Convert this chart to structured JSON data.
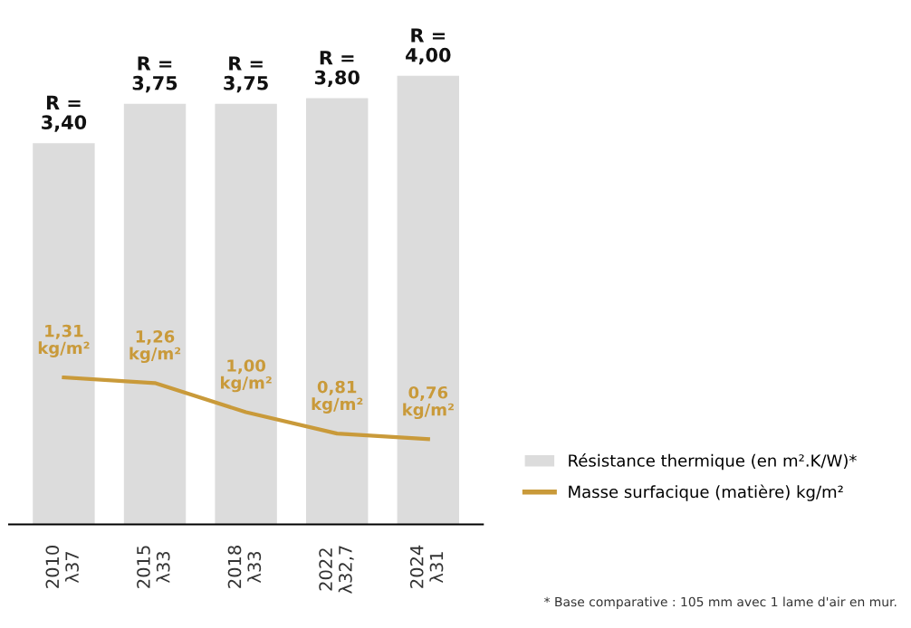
{
  "chart_data": {
    "type": "bar",
    "categories": [
      "2010\nλ37",
      "2015\nλ33",
      "2018\nλ33",
      "2022\nλ32,7",
      "2024\nλ31"
    ],
    "tick_labels": "x",
    "legend": "right",
    "grid": false,
    "series": [
      {
        "name": "Résistance thermique (en m².K/W)*",
        "color": "#dcdcdc",
        "values": [
          3.4,
          3.75,
          3.75,
          3.8,
          4.0
        ],
        "value_labels": [
          "R =\n3,40",
          "R =\n3,75",
          "R =\n3,75",
          "R =\n3,80",
          "R =\n4,00"
        ]
      },
      {
        "name": "Masse surfacique (matière) kg/m²",
        "type": "line",
        "color": "#c99a3a",
        "values": [
          1.31,
          1.26,
          1.0,
          0.81,
          0.76
        ],
        "value_labels": [
          "1,31\nkg/m²",
          "1,26\nkg/m²",
          "1,00\nkg/m²",
          "0,81\nkg/m²",
          "0,76\nkg/m²"
        ]
      }
    ],
    "annotations": [
      "* Base comparative : 105 mm avec 1 lame d'air en mur."
    ]
  }
}
